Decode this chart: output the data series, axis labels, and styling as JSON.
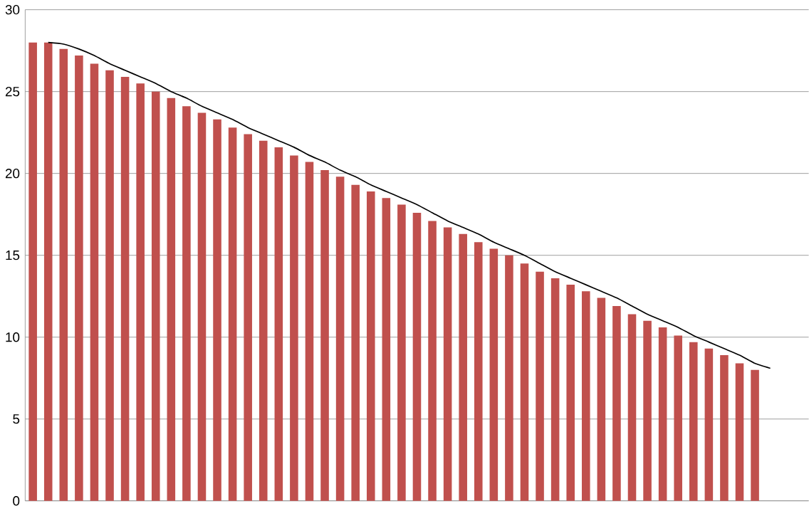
{
  "chart_data": {
    "type": "bar",
    "categories": [
      null,
      null,
      null,
      null,
      null,
      null,
      null,
      null,
      null,
      null,
      null,
      null,
      null,
      null,
      null,
      null,
      null,
      null,
      null,
      null,
      null,
      null,
      null,
      null,
      null,
      null,
      null,
      null,
      null,
      null,
      null,
      null,
      null,
      null,
      null,
      null,
      null,
      null,
      null,
      null,
      null,
      null,
      null,
      null,
      null,
      null,
      null,
      null,
      null,
      null,
      null
    ],
    "series": [
      {
        "color": "#c0504d",
        "values": [
          28,
          28,
          27.6,
          27.2,
          26.7,
          26.3,
          25.9,
          25.5,
          25.0,
          24.6,
          24.1,
          23.7,
          23.3,
          22.8,
          22.4,
          22.0,
          21.6,
          21.1,
          20.7,
          20.2,
          19.8,
          19.3,
          18.9,
          18.5,
          18.1,
          17.6,
          17.1,
          16.7,
          16.3,
          15.8,
          15.4,
          15.0,
          14.5,
          14.0,
          13.6,
          13.2,
          12.8,
          12.4,
          11.9,
          11.4,
          11.0,
          10.6,
          10.1,
          9.7,
          9.3,
          8.9,
          8.4,
          8.0,
          null,
          null,
          null
        ]
      },
      {
        "type": "line",
        "color": "#000000",
        "values": [
          null,
          28,
          27.9,
          27.6,
          27.2,
          26.7,
          26.3,
          25.9,
          25.5,
          25.0,
          24.6,
          24.1,
          23.7,
          23.3,
          22.8,
          22.4,
          22.0,
          21.6,
          21.1,
          20.7,
          20.2,
          19.8,
          19.3,
          18.9,
          18.5,
          18.1,
          17.6,
          17.1,
          16.7,
          16.3,
          15.8,
          15.4,
          15.0,
          14.5,
          14.0,
          13.6,
          13.2,
          12.8,
          12.4,
          11.9,
          11.4,
          11.0,
          10.6,
          10.1,
          9.7,
          9.3,
          8.9,
          8.4,
          8.1,
          null,
          null
        ]
      }
    ],
    "ylim": [
      0,
      30
    ],
    "yticks": [
      0,
      5,
      10,
      15,
      20,
      25,
      30
    ],
    "grid": "y",
    "tick_labels": "y",
    "marker": "none"
  }
}
